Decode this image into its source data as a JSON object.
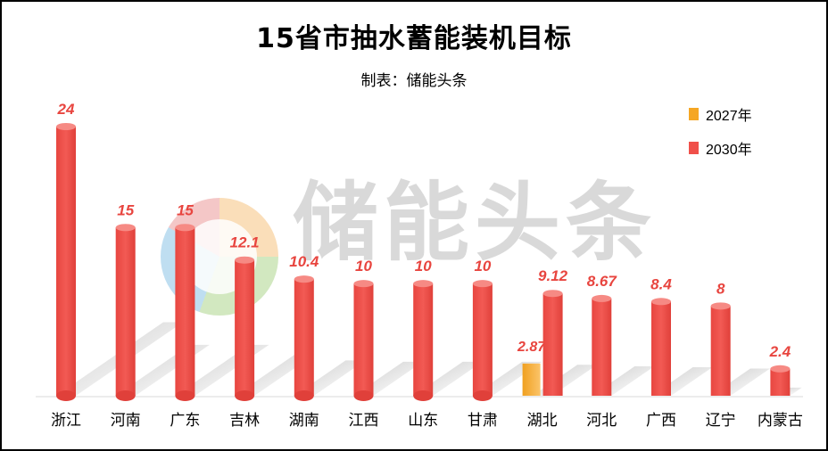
{
  "title": "15省市抽水蓄能装机目标",
  "subtitle": "制表：储能头条",
  "watermark": "储能头条",
  "legend": {
    "items": [
      {
        "label": "2027年",
        "color": "#f5a623"
      },
      {
        "label": "2030年",
        "color": "#f0504a"
      }
    ]
  },
  "chart_data": {
    "type": "bar",
    "title": "15省市抽水蓄能装机目标",
    "subtitle": "制表：储能头条",
    "xlabel": "",
    "ylabel": "",
    "categories": [
      "浙江",
      "河南",
      "广东",
      "吉林",
      "湖南",
      "江西",
      "山东",
      "甘肃",
      "湖北",
      "河北",
      "广西",
      "辽宁",
      "内蒙古"
    ],
    "series": [
      {
        "name": "2030年",
        "color": "#f0504a",
        "values": [
          24,
          15,
          15,
          12.1,
          10.4,
          10,
          10,
          10,
          9.12,
          8.67,
          8.4,
          8,
          2.4
        ],
        "labels": [
          "24",
          "15",
          "15",
          "12.1",
          "10.4",
          "10",
          "10",
          "10",
          "9.12",
          "8.67",
          "8.4",
          "8",
          "2.4"
        ]
      },
      {
        "name": "2027年",
        "color": "#f5a623",
        "values": [
          null,
          null,
          null,
          null,
          null,
          null,
          null,
          null,
          2.87,
          null,
          null,
          null,
          null
        ],
        "labels": [
          "",
          "",
          "",
          "",
          "",
          "",
          "",
          "",
          "2.87",
          "",
          "",
          "",
          ""
        ]
      }
    ],
    "ylim": [
      0,
      24
    ],
    "grid": false,
    "legend_position": "top-right"
  }
}
